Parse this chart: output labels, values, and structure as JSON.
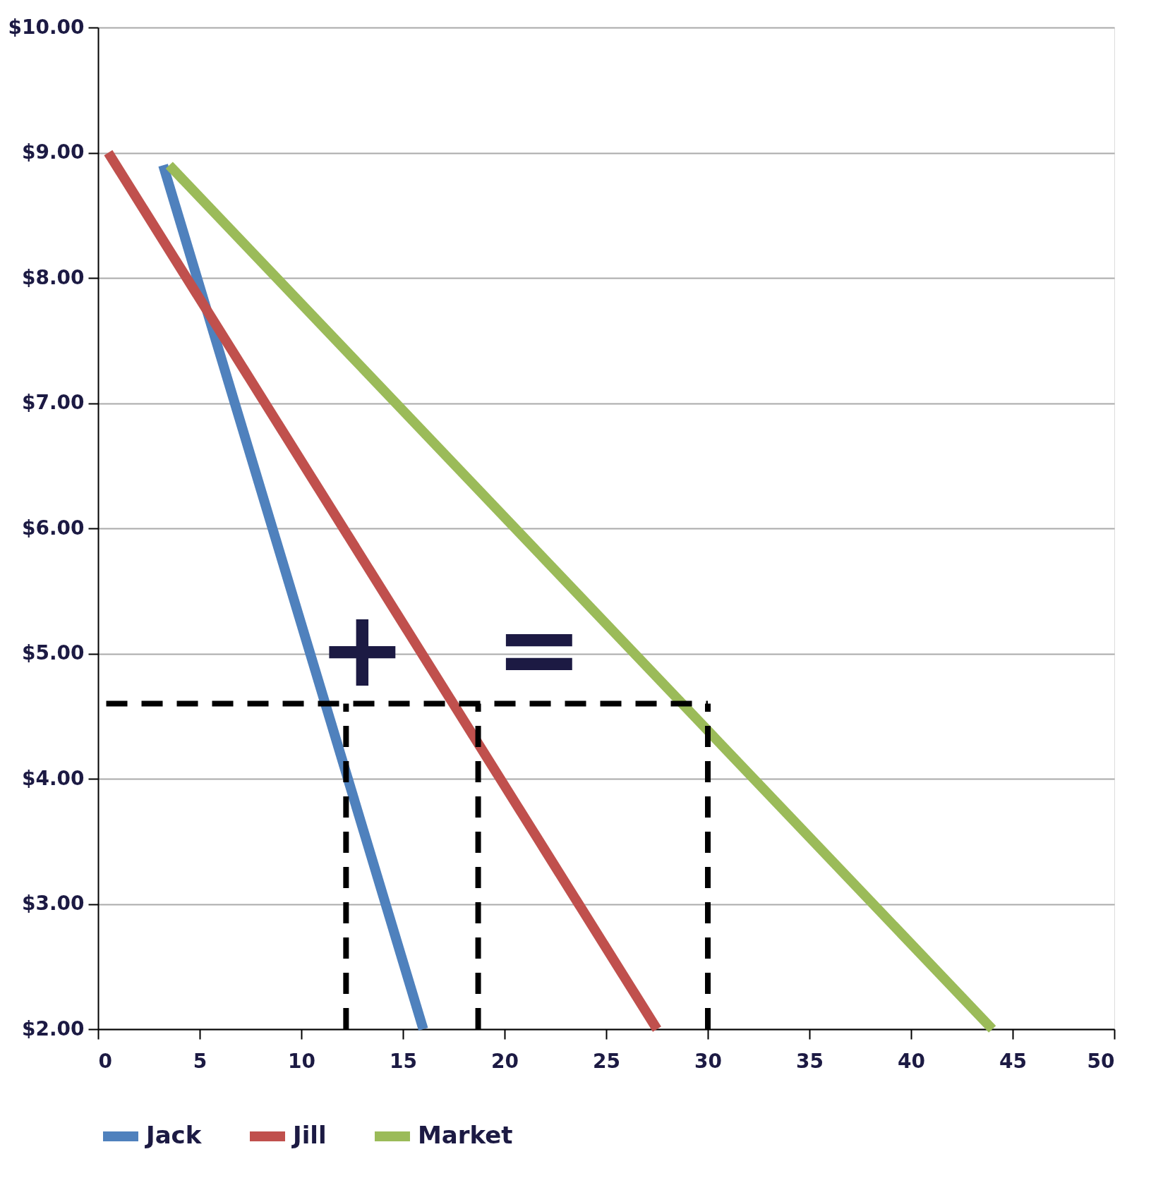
{
  "chart_data": {
    "type": "line",
    "xlim": [
      0,
      50
    ],
    "xticks": [
      0,
      5,
      10,
      15,
      20,
      25,
      30,
      35,
      40,
      45,
      50
    ],
    "ylim": [
      2,
      10
    ],
    "yticks": [
      {
        "value": 2,
        "label": "$2.00"
      },
      {
        "value": 3,
        "label": "$3.00"
      },
      {
        "value": 4,
        "label": "$4.00"
      },
      {
        "value": 5,
        "label": "$5.00"
      },
      {
        "value": 6,
        "label": "$6.00"
      },
      {
        "value": 7,
        "label": "$7.00"
      },
      {
        "value": 8,
        "label": "$8.00"
      },
      {
        "value": 9,
        "label": "$9.00"
      },
      {
        "value": 10,
        "label": "$10.00"
      }
    ],
    "grid": "y",
    "legend": "bottom",
    "marker": "none",
    "series": [
      {
        "name": "Jack",
        "color": "#4f81bd",
        "x": [
          3.2,
          16
        ],
        "values": [
          8.9,
          2
        ],
        "line_style": "solid"
      },
      {
        "name": "Jill",
        "color": "#c0504d",
        "x": [
          0.5,
          27.5
        ],
        "values": [
          9,
          2
        ],
        "line_style": "solid"
      },
      {
        "name": "Market",
        "color": "#9bbb59",
        "x": [
          3.5,
          44
        ],
        "values": [
          8.9,
          2
        ],
        "line_style": "solid"
      },
      {
        "color": "#000000",
        "x": [
          0.4,
          30
        ],
        "values": [
          4.6,
          4.6
        ],
        "line_style": "dashed"
      },
      {
        "color": "#000000",
        "x": [
          12.2,
          12.2
        ],
        "values": [
          2,
          4.6
        ],
        "line_style": "dashed"
      },
      {
        "color": "#000000",
        "x": [
          18.7,
          18.7
        ],
        "values": [
          2,
          4.6
        ],
        "line_style": "dashed"
      },
      {
        "color": "#000000",
        "x": [
          30,
          30
        ],
        "values": [
          2,
          4.6
        ],
        "line_style": "dashed"
      }
    ],
    "annotations": [
      "+",
      "="
    ]
  }
}
